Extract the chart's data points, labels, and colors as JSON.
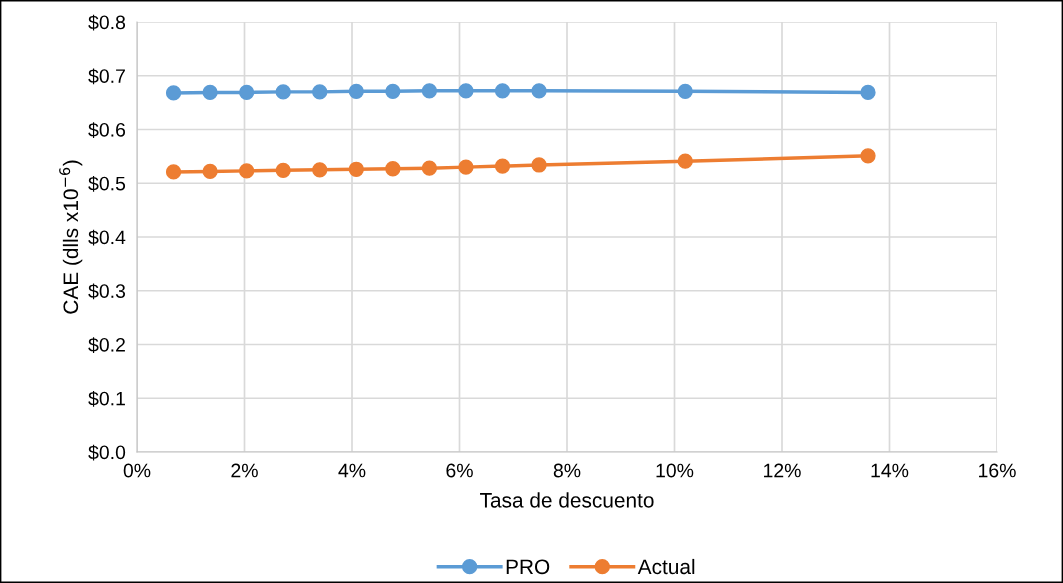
{
  "chart_data": {
    "type": "line",
    "xlabel": "Tasa de descuento",
    "ylabel": "CAE (dlls x10$^{−6}$)",
    "x": [
      0.68,
      1.36,
      2.04,
      2.72,
      3.4,
      4.08,
      4.76,
      5.44,
      6.12,
      6.8,
      7.48,
      10.2,
      13.6
    ],
    "series": [
      {
        "name": "PRO",
        "color": "#5b9bd5",
        "values": [
          0.668,
          0.669,
          0.669,
          0.67,
          0.67,
          0.671,
          0.671,
          0.672,
          0.672,
          0.672,
          0.672,
          0.671,
          0.669
        ]
      },
      {
        "name": "Actual",
        "color": "#ed7d31",
        "values": [
          0.521,
          0.522,
          0.523,
          0.524,
          0.525,
          0.526,
          0.527,
          0.528,
          0.53,
          0.532,
          0.534,
          0.541,
          0.551
        ]
      }
    ],
    "xlim": [
      0,
      16
    ],
    "xticks": [
      {
        "value": 0,
        "label": "0%"
      },
      {
        "value": 2,
        "label": "2%"
      },
      {
        "value": 4,
        "label": "4%"
      },
      {
        "value": 6,
        "label": "6%"
      },
      {
        "value": 8,
        "label": "8%"
      },
      {
        "value": 10,
        "label": "10%"
      },
      {
        "value": 12,
        "label": "12%"
      },
      {
        "value": 14,
        "label": "14%"
      },
      {
        "value": 16,
        "label": "16%"
      }
    ],
    "ylim": [
      0,
      0.8
    ],
    "yticks": [
      {
        "value": 0,
        "label": "$0.0"
      },
      {
        "value": 0.1,
        "label": "$0.1"
      },
      {
        "value": 0.2,
        "label": "$0.2"
      },
      {
        "value": 0.3,
        "label": "$0.3"
      },
      {
        "value": 0.4,
        "label": "$0.4"
      },
      {
        "value": 0.5,
        "label": "$0.5"
      },
      {
        "value": 0.6,
        "label": "$0.6"
      },
      {
        "value": 0.7,
        "label": "$0.7"
      },
      {
        "value": 0.8,
        "label": "$0.8"
      }
    ],
    "grid": true,
    "legend": "bottom",
    "marker": "circle",
    "line_style": "solid"
  }
}
